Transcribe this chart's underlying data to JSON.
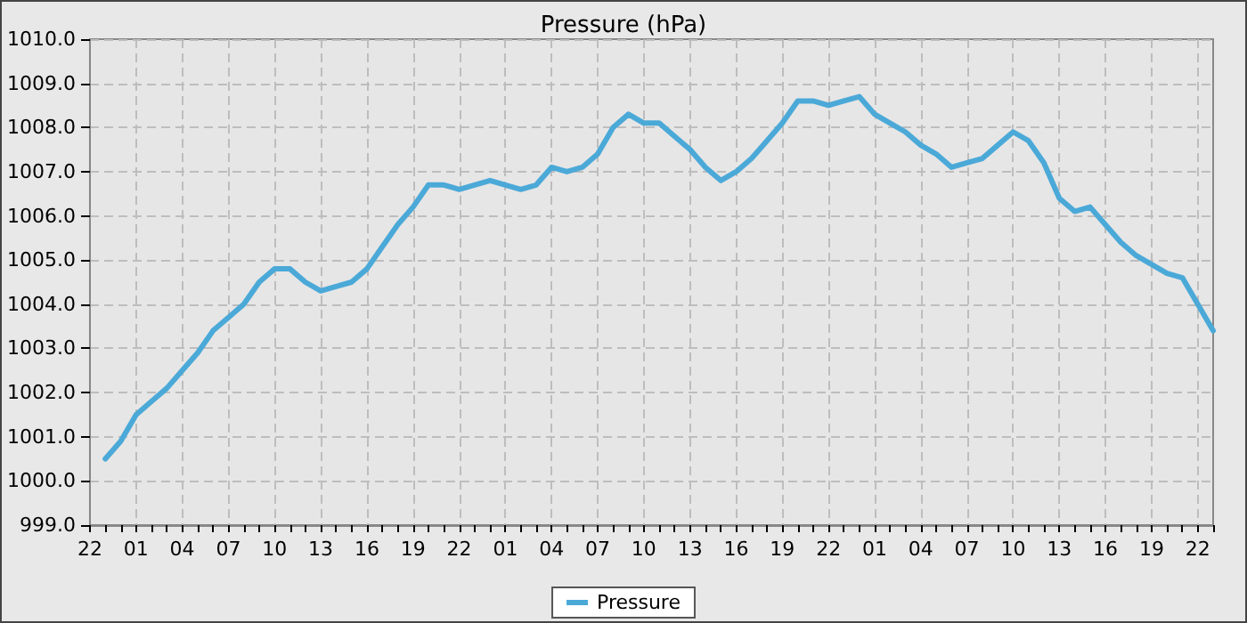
{
  "chart_data": {
    "type": "line",
    "title": "Pressure (hPa)",
    "categories": [
      "22",
      null,
      null,
      "01",
      null,
      null,
      "04",
      null,
      null,
      "07",
      null,
      null,
      "10",
      null,
      null,
      "13",
      null,
      null,
      "16",
      null,
      null,
      "19",
      null,
      null,
      "22",
      null,
      null,
      "01",
      null,
      null,
      "04",
      null,
      null,
      "07",
      null,
      null,
      "10",
      null,
      null,
      "13",
      null,
      null,
      "16",
      null,
      null,
      "19",
      null,
      null,
      "22",
      null,
      null,
      "01",
      null,
      null,
      "04",
      null,
      null,
      "07",
      null,
      null,
      "10",
      null,
      null,
      "13",
      null,
      null,
      "16",
      null,
      null,
      "19",
      null,
      null,
      "22",
      null
    ],
    "ylim": [
      999,
      1010
    ],
    "yticks": [
      {
        "value": 999,
        "label": "999.0"
      },
      {
        "value": 1000,
        "label": "1000.0"
      },
      {
        "value": 1001,
        "label": "1001.0"
      },
      {
        "value": 1002,
        "label": "1002.0"
      },
      {
        "value": 1003,
        "label": "1003.0"
      },
      {
        "value": 1004,
        "label": "1004.0"
      },
      {
        "value": 1005,
        "label": "1005.0"
      },
      {
        "value": 1006,
        "label": "1006.0"
      },
      {
        "value": 1007,
        "label": "1007.0"
      },
      {
        "value": 1008,
        "label": "1008.0"
      },
      {
        "value": 1009,
        "label": "1009.0"
      },
      {
        "value": 1010,
        "label": "1010.0"
      }
    ],
    "grid": true,
    "legend": "bottom",
    "marker": "none",
    "line_style": "solid",
    "series": [
      {
        "name": "Pressure",
        "color": "#4ba9d8",
        "values": [
          null,
          1000.5,
          1000.9,
          1001.5,
          1001.8,
          1002.1,
          1002.5,
          1002.9,
          1003.4,
          1003.7,
          1004.0,
          1004.5,
          1004.8,
          1004.8,
          1004.5,
          1004.3,
          1004.4,
          1004.5,
          1004.8,
          1005.3,
          1005.8,
          1006.2,
          1006.7,
          1006.7,
          1006.6,
          1006.7,
          1006.8,
          1006.7,
          1006.6,
          1006.7,
          1007.1,
          1007.0,
          1007.1,
          1007.4,
          1008.0,
          1008.3,
          1008.1,
          1008.1,
          1007.8,
          1007.5,
          1007.1,
          1006.8,
          1007.0,
          1007.3,
          1007.7,
          1008.1,
          1008.6,
          1008.6,
          1008.5,
          1008.6,
          1008.7,
          1008.3,
          1008.1,
          1007.9,
          1007.6,
          1007.4,
          1007.1,
          1007.2,
          1007.3,
          1007.6,
          1007.9,
          1007.7,
          1007.2,
          1006.4,
          1006.1,
          1006.2,
          1005.8,
          1005.4,
          1005.1,
          1004.9,
          1004.7,
          1004.6,
          1004.0,
          1003.4
        ]
      }
    ]
  }
}
